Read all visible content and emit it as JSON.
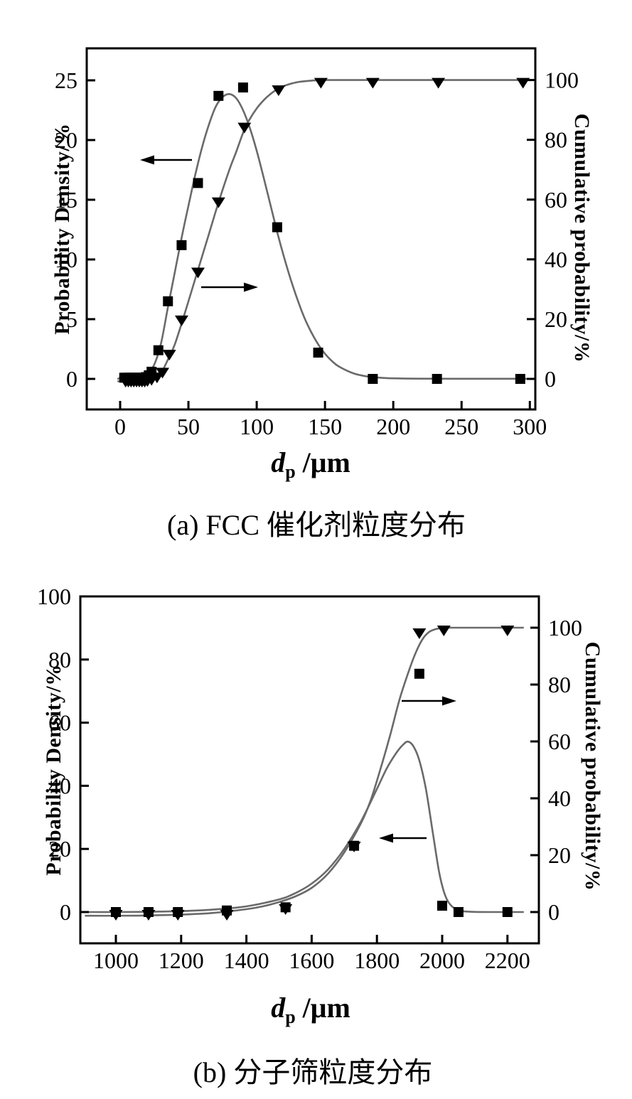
{
  "figure": {
    "background": "#ffffff",
    "colors": {
      "curve": "#6a6a6a",
      "marker": "#000000",
      "axis": "#000000",
      "text": "#000000"
    }
  },
  "chart_data": [
    {
      "id": "a",
      "type": "line",
      "caption": "(a) FCC 催化剂粒度分布",
      "x_axis": {
        "title_symbol": "d",
        "title_sub": "p",
        "title_rest": " /μm",
        "ticks": [
          0,
          50,
          100,
          150,
          200,
          250,
          300
        ],
        "range": [
          -25,
          305
        ],
        "grid": false
      },
      "left_axis": {
        "label": "Probability Density/%",
        "ticks": [
          0,
          5,
          10,
          15,
          20,
          25
        ],
        "range": [
          -2.6,
          27.7
        ]
      },
      "right_axis": {
        "label": "Cumulative probability/%",
        "ticks": [
          0,
          20,
          40,
          60,
          80,
          100
        ],
        "range": [
          -10.2,
          110.6
        ]
      },
      "legend": "none",
      "arrows": [
        {
          "pointing": "left",
          "meaning": "curve read on left axis"
        },
        {
          "pointing": "right",
          "meaning": "curve read on right axis"
        }
      ],
      "series": [
        {
          "name": "probability-density",
          "axis": "left",
          "marker": "square",
          "points": [
            [
              3,
              0.1
            ],
            [
              5,
              0.1
            ],
            [
              7,
              0.1
            ],
            [
              9,
              0.1
            ],
            [
              11,
              0.1
            ],
            [
              13,
              0.1
            ],
            [
              15,
              0.1
            ],
            [
              17,
              0.1
            ],
            [
              19,
              0.15
            ],
            [
              21,
              0.3
            ],
            [
              23,
              0.6
            ],
            [
              28,
              2.4
            ],
            [
              35,
              6.5
            ],
            [
              45,
              11.2
            ],
            [
              57,
              16.4
            ],
            [
              72,
              23.7
            ],
            [
              90,
              24.4
            ],
            [
              115,
              12.7
            ],
            [
              145,
              2.2
            ],
            [
              185,
              0
            ],
            [
              232,
              0
            ],
            [
              293,
              0
            ]
          ],
          "curve": [
            [
              -2,
              0.02
            ],
            [
              8,
              0.05
            ],
            [
              15,
              0.15
            ],
            [
              20,
              0.45
            ],
            [
              25,
              1.2
            ],
            [
              30,
              3
            ],
            [
              35,
              6
            ],
            [
              40,
              8.9
            ],
            [
              45,
              11.8
            ],
            [
              50,
              14.5
            ],
            [
              55,
              17.1
            ],
            [
              60,
              19.4
            ],
            [
              65,
              21.3
            ],
            [
              70,
              22.8
            ],
            [
              75,
              23.6
            ],
            [
              80,
              23.85
            ],
            [
              85,
              23.5
            ],
            [
              90,
              22.5
            ],
            [
              95,
              21
            ],
            [
              100,
              19.1
            ],
            [
              105,
              16.9
            ],
            [
              110,
              14.6
            ],
            [
              115,
              12.3
            ],
            [
              120,
              10.2
            ],
            [
              125,
              8.3
            ],
            [
              130,
              6.6
            ],
            [
              135,
              5.1
            ],
            [
              140,
              3.9
            ],
            [
              145,
              2.9
            ],
            [
              150,
              2.1
            ],
            [
              155,
              1.5
            ],
            [
              160,
              1.05
            ],
            [
              170,
              0.5
            ],
            [
              180,
              0.22
            ],
            [
              190,
              0.1
            ],
            [
              200,
              0.05
            ],
            [
              220,
              0.02
            ],
            [
              260,
              0.01
            ],
            [
              300,
              0.01
            ]
          ]
        },
        {
          "name": "cumulative-probability",
          "axis": "right",
          "marker": "triangle-down",
          "points": [
            [
              4,
              0
            ],
            [
              6,
              0
            ],
            [
              8,
              0
            ],
            [
              10,
              0
            ],
            [
              12,
              0
            ],
            [
              14,
              0
            ],
            [
              16,
              0
            ],
            [
              18,
              0
            ],
            [
              20,
              0.2
            ],
            [
              23,
              0.6
            ],
            [
              27,
              1.4
            ],
            [
              31,
              3
            ],
            [
              36,
              9
            ],
            [
              45,
              20.5
            ],
            [
              57,
              36.5
            ],
            [
              72,
              60
            ],
            [
              91,
              85
            ],
            [
              116,
              97.5
            ],
            [
              147,
              100
            ],
            [
              185,
              100
            ],
            [
              233,
              100
            ],
            [
              295,
              100
            ]
          ],
          "curve": [
            [
              -2,
              -0.8
            ],
            [
              10,
              -0.8
            ],
            [
              16,
              -0.7
            ],
            [
              20,
              -0.4
            ],
            [
              25,
              0.4
            ],
            [
              30,
              2
            ],
            [
              36,
              7.5
            ],
            [
              40,
              11.5
            ],
            [
              45,
              18.5
            ],
            [
              50,
              26
            ],
            [
              57,
              36.5
            ],
            [
              65,
              48.5
            ],
            [
              72,
              59
            ],
            [
              80,
              70
            ],
            [
              85,
              76
            ],
            [
              91,
              83.5
            ],
            [
              95,
              87
            ],
            [
              100,
              90.5
            ],
            [
              105,
              93.2
            ],
            [
              110,
              95.3
            ],
            [
              116,
              97.2
            ],
            [
              123,
              98.5
            ],
            [
              130,
              99.3
            ],
            [
              140,
              99.8
            ],
            [
              150,
              100
            ],
            [
              170,
              100
            ],
            [
              200,
              100
            ],
            [
              250,
              100
            ],
            [
              303,
              100
            ]
          ]
        }
      ]
    },
    {
      "id": "b",
      "type": "line",
      "caption": "(b) 分子筛粒度分布",
      "x_axis": {
        "title_symbol": "d",
        "title_sub": "p",
        "title_rest": " /μm",
        "ticks": [
          1000,
          1200,
          1400,
          1600,
          1800,
          2000,
          2200
        ],
        "range": [
          891,
          2296
        ],
        "grid": false
      },
      "left_axis": {
        "label": "Probability Density/%",
        "ticks": [
          0,
          20,
          40,
          60,
          80,
          100
        ],
        "range": [
          -9.9,
          100
        ]
      },
      "right_axis": {
        "label": "Cumulative probability/%",
        "ticks": [
          0,
          20,
          40,
          60,
          80,
          100
        ],
        "range": [
          -11,
          111
        ]
      },
      "legend": "none",
      "arrows": [
        {
          "pointing": "right",
          "meaning": "curve read on right axis"
        },
        {
          "pointing": "left",
          "meaning": "curve read on left axis"
        }
      ],
      "series": [
        {
          "name": "probability-density",
          "axis": "left",
          "marker": "square",
          "points": [
            [
              1000,
              0
            ],
            [
              1100,
              0
            ],
            [
              1190,
              0
            ],
            [
              1340,
              0.5
            ],
            [
              1520,
              1.5
            ],
            [
              1730,
              21
            ],
            [
              1930,
              75.5
            ],
            [
              2000,
              2
            ],
            [
              2050,
              0
            ],
            [
              2200,
              0
            ]
          ],
          "curve": [
            [
              905,
              0
            ],
            [
              1000,
              0
            ],
            [
              1100,
              0.1
            ],
            [
              1200,
              0.3
            ],
            [
              1300,
              0.8
            ],
            [
              1400,
              1.8
            ],
            [
              1500,
              4
            ],
            [
              1550,
              6
            ],
            [
              1600,
              9
            ],
            [
              1650,
              13.5
            ],
            [
              1700,
              20
            ],
            [
              1750,
              28.5
            ],
            [
              1800,
              39
            ],
            [
              1830,
              45.5
            ],
            [
              1860,
              50.5
            ],
            [
              1880,
              53
            ],
            [
              1895,
              54
            ],
            [
              1912,
              52.5
            ],
            [
              1930,
              48
            ],
            [
              1950,
              39
            ],
            [
              1970,
              26
            ],
            [
              1990,
              13
            ],
            [
              2005,
              6.5
            ],
            [
              2020,
              3
            ],
            [
              2040,
              1
            ],
            [
              2060,
              0.3
            ],
            [
              2100,
              0.05
            ],
            [
              2160,
              0
            ],
            [
              2250,
              0
            ]
          ]
        },
        {
          "name": "cumulative-probability",
          "axis": "right",
          "marker": "triangle-down",
          "points": [
            [
              1000,
              0
            ],
            [
              1100,
              0
            ],
            [
              1190,
              0
            ],
            [
              1340,
              0
            ],
            [
              1520,
              2
            ],
            [
              1730,
              24
            ],
            [
              1930,
              99
            ],
            [
              2005,
              100
            ],
            [
              2200,
              100
            ]
          ],
          "curve": [
            [
              905,
              -1.3
            ],
            [
              1000,
              -1.3
            ],
            [
              1100,
              -1.2
            ],
            [
              1200,
              -0.9
            ],
            [
              1300,
              -0.3
            ],
            [
              1400,
              1
            ],
            [
              1450,
              2
            ],
            [
              1500,
              3.5
            ],
            [
              1550,
              5.5
            ],
            [
              1600,
              8.5
            ],
            [
              1650,
              13.5
            ],
            [
              1700,
              21
            ],
            [
              1750,
              31
            ],
            [
              1780,
              39
            ],
            [
              1810,
              50
            ],
            [
              1840,
              62
            ],
            [
              1870,
              75
            ],
            [
              1900,
              85.5
            ],
            [
              1920,
              91.5
            ],
            [
              1940,
              96
            ],
            [
              1960,
              98.5
            ],
            [
              1980,
              99.5
            ],
            [
              2000,
              99.9
            ],
            [
              2020,
              100
            ],
            [
              2100,
              100
            ],
            [
              2250,
              100
            ]
          ]
        }
      ]
    }
  ]
}
